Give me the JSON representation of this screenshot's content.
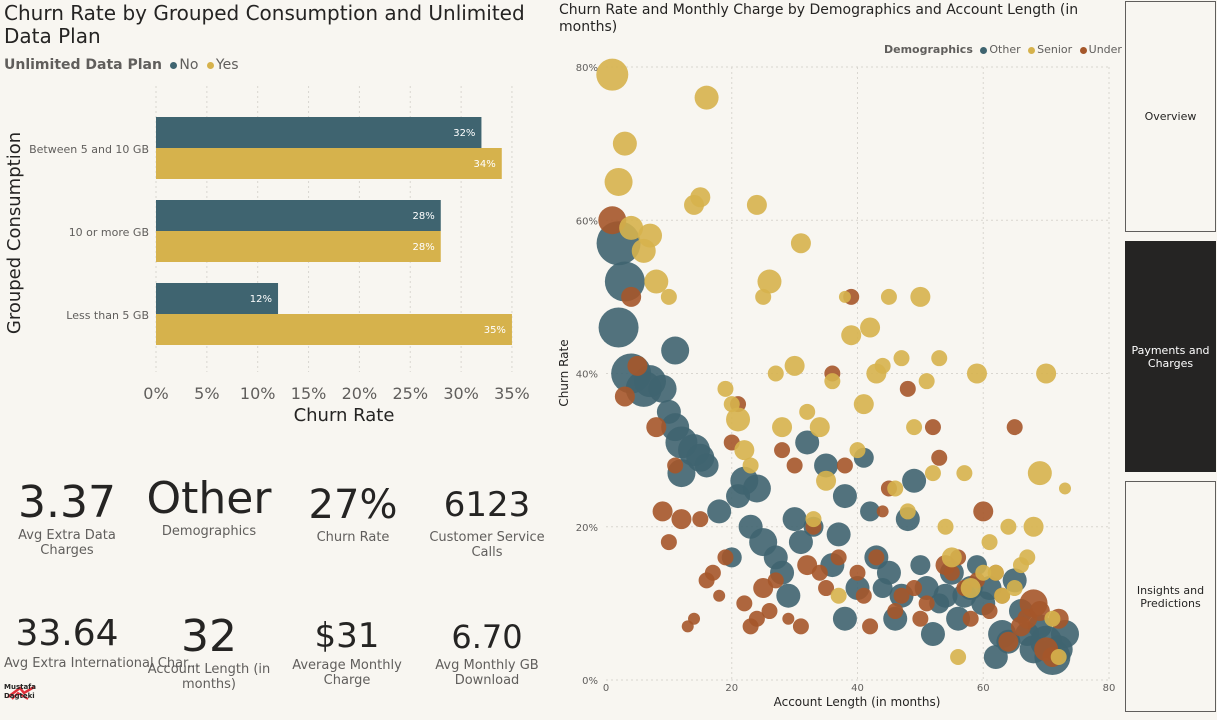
{
  "colors": {
    "no": "#3f6470",
    "yes": "#d6b24c",
    "other": "#3f6470",
    "senior": "#d6b24c",
    "under30": "#a5572a"
  },
  "bar_chart": {
    "title": "Churn Rate by Grouped Consumption and Unlimited Data Plan",
    "legend_title": "Unlimited Data Plan",
    "legend": [
      "No",
      "Yes"
    ],
    "xlabel": "Churn Rate",
    "ylabel": "Grouped Consumption",
    "ticks": [
      "0%",
      "5%",
      "10%",
      "15%",
      "20%",
      "25%",
      "30%",
      "35%"
    ]
  },
  "scatter_chart": {
    "title": "Churn Rate and Monthly Charge by Demographics and Account Length (in months)",
    "legend_title": "Demographics",
    "legend": [
      "Other",
      "Senior",
      "Under 30"
    ],
    "xlabel": "Account Length (in months)",
    "ylabel": "Churn Rate",
    "xticks": [
      "0",
      "20",
      "40",
      "60",
      "80"
    ],
    "yticks": [
      "0%",
      "20%",
      "40%",
      "60%",
      "80%"
    ]
  },
  "chart_data": [
    {
      "type": "bar",
      "title": "Churn Rate by Grouped Consumption and Unlimited Data Plan",
      "categories": [
        "Between 5 and 10 GB",
        "10 or more GB",
        "Less than 5 GB"
      ],
      "series": [
        {
          "name": "No",
          "values": [
            32,
            28,
            12
          ],
          "labels": [
            "32%",
            "28%",
            "12%"
          ]
        },
        {
          "name": "Yes",
          "values": [
            34,
            28,
            35
          ],
          "labels": [
            "34%",
            "28%",
            "35%"
          ]
        }
      ],
      "xlabel": "Churn Rate",
      "ylabel": "Grouped Consumption",
      "xlim": [
        0,
        37
      ]
    },
    {
      "type": "scatter",
      "title": "Churn Rate and Monthly Charge by Demographics and Account Length (in months)",
      "xlabel": "Account Length (in months)",
      "ylabel": "Churn Rate",
      "xlim": [
        0,
        80
      ],
      "ylim": [
        0,
        80
      ],
      "series": [
        {
          "name": "Other",
          "points": [
            [
              2,
              57,
              22
            ],
            [
              3,
              52,
              20
            ],
            [
              2,
              46,
              20
            ],
            [
              4,
              40,
              20
            ],
            [
              6,
              38,
              18
            ],
            [
              7,
              39,
              16
            ],
            [
              9,
              38,
              14
            ],
            [
              10,
              35,
              12
            ],
            [
              11,
              43,
              14
            ],
            [
              11,
              33,
              14
            ],
            [
              12,
              31,
              16
            ],
            [
              12,
              27,
              14
            ],
            [
              14,
              30,
              16
            ],
            [
              15,
              29,
              14
            ],
            [
              16,
              28,
              12
            ],
            [
              18,
              22,
              12
            ],
            [
              20,
              16,
              10
            ],
            [
              21,
              24,
              12
            ],
            [
              22,
              26,
              14
            ],
            [
              23,
              20,
              12
            ],
            [
              24,
              25,
              14
            ],
            [
              25,
              18,
              14
            ],
            [
              27,
              16,
              12
            ],
            [
              28,
              14,
              12
            ],
            [
              29,
              11,
              12
            ],
            [
              30,
              21,
              12
            ],
            [
              31,
              18,
              12
            ],
            [
              32,
              31,
              12
            ],
            [
              33,
              20,
              10
            ],
            [
              35,
              28,
              12
            ],
            [
              36,
              15,
              12
            ],
            [
              37,
              19,
              12
            ],
            [
              38,
              8,
              12
            ],
            [
              38,
              24,
              12
            ],
            [
              40,
              12,
              12
            ],
            [
              41,
              29,
              10
            ],
            [
              42,
              22,
              10
            ],
            [
              43,
              16,
              12
            ],
            [
              44,
              12,
              10
            ],
            [
              45,
              14,
              12
            ],
            [
              46,
              8,
              12
            ],
            [
              47,
              11,
              12
            ],
            [
              48,
              21,
              12
            ],
            [
              49,
              26,
              12
            ],
            [
              50,
              15,
              10
            ],
            [
              51,
              12,
              12
            ],
            [
              52,
              6,
              12
            ],
            [
              53,
              10,
              10
            ],
            [
              54,
              11,
              12
            ],
            [
              55,
              14,
              12
            ],
            [
              56,
              8,
              12
            ],
            [
              57,
              11,
              12
            ],
            [
              58,
              12,
              12
            ],
            [
              59,
              15,
              10
            ],
            [
              60,
              10,
              12
            ],
            [
              61,
              12,
              12
            ],
            [
              62,
              3,
              12
            ],
            [
              63,
              6,
              14
            ],
            [
              64,
              5,
              12
            ],
            [
              65,
              13,
              12
            ],
            [
              66,
              9,
              12
            ],
            [
              67,
              6,
              12
            ],
            [
              68,
              4,
              14
            ],
            [
              69,
              7,
              12
            ],
            [
              70,
              5,
              16
            ],
            [
              71,
              3,
              18
            ],
            [
              72,
              4,
              14
            ],
            [
              73,
              6,
              14
            ]
          ]
        },
        {
          "name": "Senior",
          "points": [
            [
              1,
              79,
              16
            ],
            [
              3,
              70,
              12
            ],
            [
              2,
              65,
              14
            ],
            [
              4,
              59,
              12
            ],
            [
              7,
              58,
              12
            ],
            [
              8,
              52,
              12
            ],
            [
              6,
              56,
              12
            ],
            [
              10,
              50,
              8
            ],
            [
              14,
              62,
              10
            ],
            [
              15,
              63,
              10
            ],
            [
              16,
              76,
              12
            ],
            [
              19,
              38,
              8
            ],
            [
              20,
              36,
              8
            ],
            [
              21,
              34,
              12
            ],
            [
              22,
              30,
              10
            ],
            [
              23,
              28,
              8
            ],
            [
              24,
              62,
              10
            ],
            [
              25,
              50,
              8
            ],
            [
              26,
              52,
              12
            ],
            [
              27,
              40,
              8
            ],
            [
              28,
              33,
              10
            ],
            [
              30,
              41,
              10
            ],
            [
              31,
              57,
              10
            ],
            [
              32,
              35,
              8
            ],
            [
              33,
              21,
              8
            ],
            [
              34,
              33,
              10
            ],
            [
              35,
              26,
              10
            ],
            [
              36,
              39,
              8
            ],
            [
              37,
              11,
              8
            ],
            [
              38,
              50,
              6
            ],
            [
              39,
              45,
              10
            ],
            [
              40,
              30,
              8
            ],
            [
              41,
              36,
              10
            ],
            [
              42,
              46,
              10
            ],
            [
              43,
              40,
              10
            ],
            [
              44,
              41,
              8
            ],
            [
              45,
              50,
              8
            ],
            [
              46,
              25,
              8
            ],
            [
              47,
              42,
              8
            ],
            [
              48,
              22,
              8
            ],
            [
              49,
              33,
              8
            ],
            [
              50,
              50,
              10
            ],
            [
              51,
              39,
              8
            ],
            [
              52,
              27,
              8
            ],
            [
              53,
              42,
              8
            ],
            [
              54,
              20,
              8
            ],
            [
              55,
              16,
              10
            ],
            [
              56,
              3,
              8
            ],
            [
              57,
              27,
              8
            ],
            [
              58,
              12,
              10
            ],
            [
              59,
              40,
              10
            ],
            [
              60,
              14,
              8
            ],
            [
              61,
              18,
              8
            ],
            [
              62,
              14,
              8
            ],
            [
              63,
              11,
              8
            ],
            [
              64,
              20,
              8
            ],
            [
              65,
              12,
              8
            ],
            [
              66,
              15,
              8
            ],
            [
              67,
              16,
              8
            ],
            [
              68,
              20,
              10
            ],
            [
              69,
              27,
              12
            ],
            [
              70,
              40,
              10
            ],
            [
              71,
              8,
              8
            ],
            [
              72,
              3,
              8
            ],
            [
              73,
              25,
              6
            ]
          ]
        },
        {
          "name": "Under 30",
          "points": [
            [
              1,
              60,
              14
            ],
            [
              4,
              50,
              10
            ],
            [
              5,
              41,
              10
            ],
            [
              3,
              37,
              10
            ],
            [
              8,
              33,
              10
            ],
            [
              9,
              22,
              10
            ],
            [
              10,
              18,
              8
            ],
            [
              11,
              28,
              8
            ],
            [
              12,
              21,
              10
            ],
            [
              13,
              7,
              6
            ],
            [
              14,
              8,
              6
            ],
            [
              15,
              21,
              8
            ],
            [
              16,
              13,
              8
            ],
            [
              17,
              14,
              8
            ],
            [
              18,
              11,
              6
            ],
            [
              19,
              16,
              8
            ],
            [
              20,
              31,
              8
            ],
            [
              21,
              36,
              8
            ],
            [
              22,
              10,
              8
            ],
            [
              23,
              7,
              8
            ],
            [
              24,
              8,
              8
            ],
            [
              25,
              12,
              10
            ],
            [
              26,
              9,
              8
            ],
            [
              27,
              13,
              8
            ],
            [
              28,
              30,
              8
            ],
            [
              29,
              8,
              6
            ],
            [
              30,
              28,
              8
            ],
            [
              31,
              7,
              8
            ],
            [
              32,
              15,
              10
            ],
            [
              33,
              20,
              8
            ],
            [
              34,
              14,
              8
            ],
            [
              35,
              12,
              8
            ],
            [
              36,
              40,
              8
            ],
            [
              37,
              16,
              8
            ],
            [
              38,
              28,
              8
            ],
            [
              39,
              50,
              8
            ],
            [
              40,
              14,
              8
            ],
            [
              41,
              11,
              8
            ],
            [
              42,
              7,
              8
            ],
            [
              43,
              16,
              8
            ],
            [
              44,
              22,
              6
            ],
            [
              45,
              25,
              8
            ],
            [
              46,
              9,
              8
            ],
            [
              47,
              11,
              8
            ],
            [
              48,
              38,
              8
            ],
            [
              49,
              12,
              8
            ],
            [
              50,
              8,
              8
            ],
            [
              51,
              10,
              8
            ],
            [
              52,
              33,
              8
            ],
            [
              53,
              29,
              8
            ],
            [
              54,
              15,
              10
            ],
            [
              55,
              14,
              8
            ],
            [
              56,
              16,
              8
            ],
            [
              57,
              12,
              8
            ],
            [
              58,
              8,
              8
            ],
            [
              59,
              13,
              8
            ],
            [
              60,
              22,
              10
            ],
            [
              61,
              9,
              8
            ],
            [
              62,
              14,
              8
            ],
            [
              63,
              11,
              8
            ],
            [
              64,
              5,
              10
            ],
            [
              65,
              33,
              8
            ],
            [
              66,
              7,
              10
            ],
            [
              67,
              8,
              10
            ],
            [
              68,
              10,
              14
            ],
            [
              69,
              9,
              10
            ],
            [
              70,
              4,
              12
            ],
            [
              71,
              3,
              10
            ],
            [
              72,
              8,
              10
            ]
          ]
        }
      ]
    }
  ],
  "kpis": [
    {
      "value": "3.37",
      "caption": "Avg Extra Data Charges"
    },
    {
      "value": "Other",
      "caption": "Demographics"
    },
    {
      "value": "27%",
      "caption": "Churn Rate"
    },
    {
      "value": "6123",
      "caption": "Customer Service Calls"
    },
    {
      "value": "33.64",
      "caption": "Avg Extra International Char..."
    },
    {
      "value": "32",
      "caption": "Account Length (in months)"
    },
    {
      "value": "$31",
      "caption": "Average Monthly Charge"
    },
    {
      "value": "6.70",
      "caption": "Avg Monthly GB Download"
    }
  ],
  "nav": [
    {
      "label": "Overview"
    },
    {
      "label": "Payments and Charges"
    },
    {
      "label": "Insights and Predictions"
    }
  ],
  "logo": {
    "line1": "Mustafa",
    "line2": "Dagteki"
  }
}
